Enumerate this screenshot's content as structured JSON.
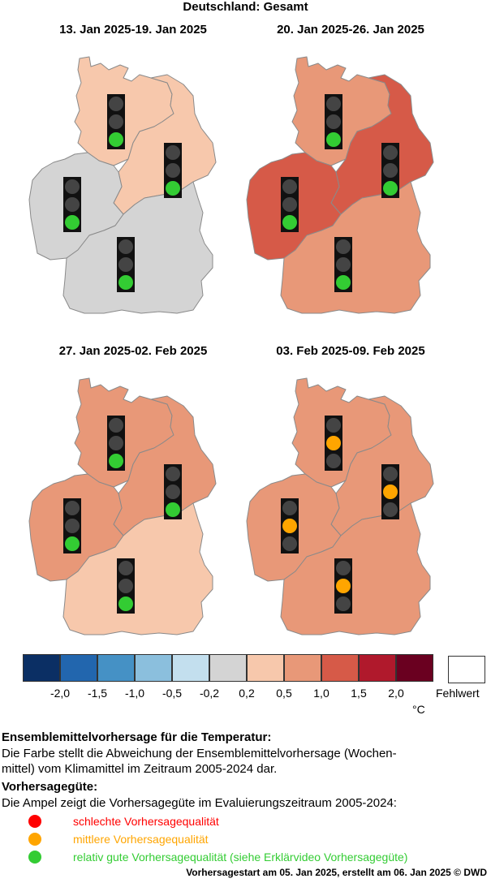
{
  "title": "Deutschland: Gesamt",
  "colors": {
    "region_border": "#8a8a8a",
    "light_housing": "#111111",
    "light_off": "#444444"
  },
  "panels": [
    {
      "period": "13. Jan 2025-19. Jan 2025",
      "regions": {
        "north": "#f7c8ac",
        "east": "#f7c8ac",
        "west": "#d4d4d4",
        "south": "#d4d4d4"
      },
      "lights": {
        "north": "green",
        "east": "green",
        "west": "green",
        "south": "green"
      }
    },
    {
      "period": "20. Jan 2025-26. Jan 2025",
      "regions": {
        "north": "#e89878",
        "east": "#d65a48",
        "west": "#d65a48",
        "south": "#e89878"
      },
      "lights": {
        "north": "green",
        "east": "green",
        "west": "green",
        "south": "green"
      }
    },
    {
      "period": "27. Jan 2025-02. Feb 2025",
      "regions": {
        "north": "#e89878",
        "east": "#e89878",
        "west": "#e89878",
        "south": "#f7c8ac"
      },
      "lights": {
        "north": "green",
        "east": "green",
        "west": "green",
        "south": "green"
      }
    },
    {
      "period": "03. Feb 2025-09. Feb 2025",
      "regions": {
        "north": "#e89878",
        "east": "#e89878",
        "west": "#e89878",
        "south": "#e89878"
      },
      "lights": {
        "north": "orange",
        "east": "orange",
        "west": "orange",
        "south": "orange"
      }
    }
  ],
  "legend": {
    "colors": [
      "#0b2f64",
      "#2266ae",
      "#4591c5",
      "#8bbfdd",
      "#c3dfee",
      "#d4d4d4",
      "#f7c8ac",
      "#e89878",
      "#d65a48",
      "#b0192c",
      "#6a0020"
    ],
    "ticks": [
      "-2,0",
      "-1,5",
      "-1,0",
      "-0,5",
      "-0,2",
      "0,2",
      "0,5",
      "1,0",
      "1,5",
      "2,0"
    ],
    "missing_label": "Fehlwert",
    "unit": "°C"
  },
  "explanation": {
    "heading1": "Ensemblemittelvorhersage für die Temperatur:",
    "line1": "Die Farbe stellt die Abweichung der Ensemblemittelvorhersage (Wochen-",
    "line2": "mittel) vom Klimamittel im Zeitraum 2005-2024 dar.",
    "heading2": "Vorhersagegüte:",
    "line3": "Die Ampel zeigt die Vorhersagegüte im Evaluierungszeitraum 2005-2024:"
  },
  "quality": [
    {
      "color": "#ff0000",
      "label": "schlechte Vorhersagequalität"
    },
    {
      "color": "#ffa500",
      "label": "mittlere Vorhersagequalität"
    },
    {
      "color": "#33cc33",
      "label": "relativ gute Vorhersagequalität (siehe Erklärvideo Vorhersagegüte)"
    }
  ],
  "footer": "Vorhersagestart am 05. Jan 2025, erstellt am 06. Jan 2025 © DWD"
}
